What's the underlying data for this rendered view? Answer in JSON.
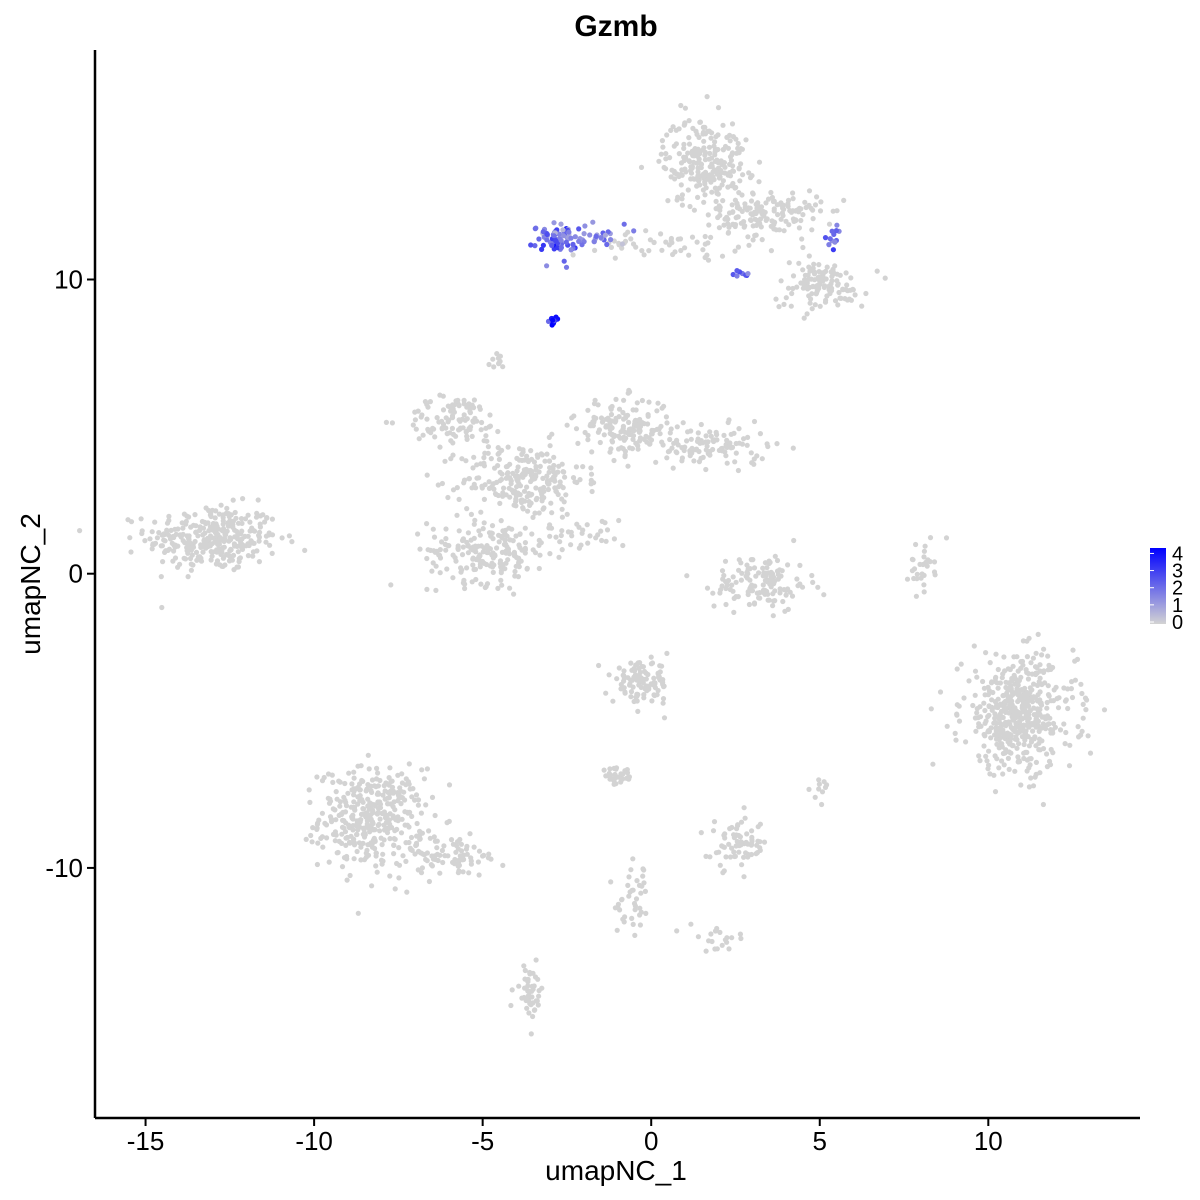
{
  "chart_data": {
    "type": "scatter",
    "title": "Gzmb",
    "xlabel": "umapNC_1",
    "ylabel": "umapNC_2",
    "xlim": [
      -16.5,
      14.5
    ],
    "ylim": [
      -18.5,
      17.8
    ],
    "x_ticks": [
      -15,
      -10,
      -5,
      0,
      5,
      10
    ],
    "x_tick_labels": [
      "-15",
      "-10",
      "-5",
      "0",
      "5",
      "10"
    ],
    "y_ticks": [
      -10,
      0,
      10
    ],
    "y_tick_labels": [
      "-10",
      "0",
      "10"
    ],
    "grid": false,
    "legend": {
      "placement": "right",
      "type": "colorbar",
      "min": 0,
      "max": 4.2,
      "low_color": "#d3d3d3",
      "high_color": "#0000ff",
      "breaks": [
        0,
        1,
        2,
        3,
        4
      ],
      "labels": [
        "0",
        "1",
        "2",
        "3",
        "4"
      ]
    },
    "clusters": [
      {
        "center": [
          -13.0,
          1.2
        ],
        "spread": [
          1.4,
          0.8
        ],
        "n": 320,
        "expression": 0
      },
      {
        "center": [
          -8.3,
          -8.3
        ],
        "spread": [
          1.1,
          1.2
        ],
        "n": 380,
        "expression": 0
      },
      {
        "center": [
          -6.0,
          -9.6
        ],
        "spread": [
          1.2,
          0.5
        ],
        "n": 80,
        "expression": 0
      },
      {
        "center": [
          -3.8,
          3.2
        ],
        "spread": [
          1.3,
          0.9
        ],
        "n": 240,
        "expression": 0
      },
      {
        "center": [
          -5.8,
          5.2
        ],
        "spread": [
          1.1,
          0.6
        ],
        "n": 100,
        "expression": 0
      },
      {
        "center": [
          -4.8,
          0.8
        ],
        "spread": [
          1.3,
          0.8
        ],
        "n": 200,
        "expression": 0
      },
      {
        "center": [
          -0.8,
          5.0
        ],
        "spread": [
          1.0,
          0.7
        ],
        "n": 160,
        "expression": 0
      },
      {
        "center": [
          1.8,
          4.3
        ],
        "spread": [
          1.2,
          0.5
        ],
        "n": 110,
        "expression": 0
      },
      {
        "center": [
          -2.0,
          1.3
        ],
        "spread": [
          0.9,
          0.4
        ],
        "n": 30,
        "expression": 0
      },
      {
        "center": [
          1.6,
          14.0
        ],
        "spread": [
          0.9,
          1.1
        ],
        "n": 240,
        "expression": 0
      },
      {
        "center": [
          3.5,
          12.2
        ],
        "spread": [
          1.1,
          0.6
        ],
        "n": 150,
        "expression": 0
      },
      {
        "center": [
          5.0,
          9.8
        ],
        "spread": [
          1.0,
          0.6
        ],
        "n": 120,
        "expression": 0
      },
      {
        "center": [
          0.5,
          11.2
        ],
        "spread": [
          1.5,
          0.3
        ],
        "n": 50,
        "expression": 0
      },
      {
        "center": [
          3.3,
          -0.3
        ],
        "spread": [
          1.0,
          0.7
        ],
        "n": 130,
        "expression": 0
      },
      {
        "center": [
          8.0,
          0.3
        ],
        "spread": [
          0.3,
          0.6
        ],
        "n": 30,
        "expression": 0
      },
      {
        "center": [
          10.9,
          -4.8
        ],
        "spread": [
          1.2,
          1.4
        ],
        "n": 500,
        "expression": 0
      },
      {
        "center": [
          -0.3,
          -3.7
        ],
        "spread": [
          0.6,
          0.5
        ],
        "n": 110,
        "expression": 0
      },
      {
        "center": [
          -1.0,
          -6.9
        ],
        "spread": [
          0.4,
          0.2
        ],
        "n": 30,
        "expression": 0
      },
      {
        "center": [
          2.6,
          -9.2
        ],
        "spread": [
          0.6,
          0.6
        ],
        "n": 70,
        "expression": 0
      },
      {
        "center": [
          -0.5,
          -11.2
        ],
        "spread": [
          0.4,
          0.9
        ],
        "n": 40,
        "expression": 0
      },
      {
        "center": [
          2.0,
          -12.4
        ],
        "spread": [
          0.6,
          0.3
        ],
        "n": 20,
        "expression": 0
      },
      {
        "center": [
          -3.6,
          -14.2
        ],
        "spread": [
          0.3,
          0.6
        ],
        "n": 45,
        "expression": 0
      },
      {
        "center": [
          5.0,
          -7.3
        ],
        "spread": [
          0.2,
          0.3
        ],
        "n": 10,
        "expression": 0
      },
      {
        "center": [
          -4.6,
          7.2
        ],
        "spread": [
          0.2,
          0.3
        ],
        "n": 10,
        "expression": 0
      },
      {
        "center": [
          -2.8,
          11.4
        ],
        "spread": [
          0.4,
          0.4
        ],
        "n": 70,
        "expression": 2.0
      },
      {
        "center": [
          -1.5,
          11.4
        ],
        "spread": [
          0.5,
          0.3
        ],
        "n": 25,
        "expression": 1.5
      },
      {
        "center": [
          5.4,
          11.5
        ],
        "spread": [
          0.2,
          0.3
        ],
        "n": 12,
        "expression": 2.0
      },
      {
        "center": [
          2.6,
          10.2
        ],
        "spread": [
          0.3,
          0.1
        ],
        "n": 8,
        "expression": 2.0
      },
      {
        "center": [
          -2.9,
          8.6
        ],
        "spread": [
          0.1,
          0.1
        ],
        "n": 15,
        "expression": 4.0
      }
    ]
  }
}
